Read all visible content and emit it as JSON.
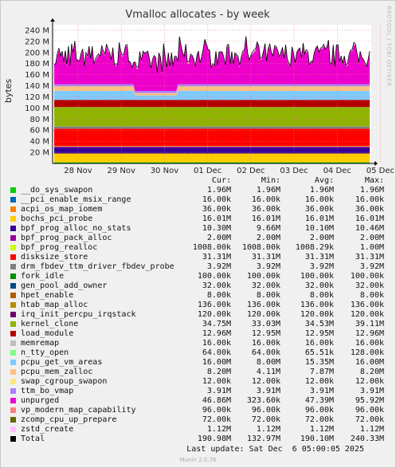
{
  "chart_data": {
    "type": "area",
    "title": "Vmalloc allocates - by week",
    "ylabel": "bytes",
    "side_label": "RRDTOOL / TOBI OETIKER",
    "ylim": [
      0,
      250000000
    ],
    "y_ticks": [
      20000000,
      40000000,
      60000000,
      80000000,
      100000000,
      120000000,
      140000000,
      160000000,
      180000000,
      200000000,
      220000000,
      240000000
    ],
    "y_tick_labels": [
      "20 M",
      "40 M",
      "60 M",
      "80 M",
      "100 M",
      "120 M",
      "140 M",
      "160 M",
      "180 M",
      "200 M",
      "220 M",
      "240 M"
    ],
    "x_tick_labels": [
      "28 Nov",
      "29 Nov",
      "30 Nov",
      "01 Dec",
      "02 Dec",
      "03 Dec",
      "04 Dec",
      "05 Dec"
    ],
    "grid": true,
    "stacked": true
  },
  "legend": {
    "headers": {
      "cur": "Cur:",
      "min": "Min:",
      "avg": "Avg:",
      "max": "Max:"
    },
    "rows": [
      {
        "name": "__do_sys_swapon",
        "color": "#00cc00",
        "cur": "1.96M",
        "min": "1.96M",
        "avg": "1.96M",
        "max": "1.96M"
      },
      {
        "name": "__pci_enable_msix_range",
        "color": "#0066b3",
        "cur": "16.00k",
        "min": "16.00k",
        "avg": "16.00k",
        "max": "16.00k"
      },
      {
        "name": "acpi_os_map_iomem",
        "color": "#ff8000",
        "cur": "36.00k",
        "min": "36.00k",
        "avg": "36.00k",
        "max": "36.00k"
      },
      {
        "name": "bochs_pci_probe",
        "color": "#ffcc00",
        "cur": "16.01M",
        "min": "16.01M",
        "avg": "16.01M",
        "max": "16.01M"
      },
      {
        "name": "bpf_prog_alloc_no_stats",
        "color": "#330099",
        "cur": "10.30M",
        "min": "9.66M",
        "avg": "10.10M",
        "max": "10.46M"
      },
      {
        "name": "bpf_prog_pack_alloc",
        "color": "#990099",
        "cur": "2.00M",
        "min": "2.00M",
        "avg": "2.00M",
        "max": "2.00M"
      },
      {
        "name": "bpf_prog_realloc",
        "color": "#ccff00",
        "cur": "1008.00k",
        "min": "1008.00k",
        "avg": "1008.29k",
        "max": "1.00M"
      },
      {
        "name": "disksize_store",
        "color": "#ff0000",
        "cur": "31.31M",
        "min": "31.31M",
        "avg": "31.31M",
        "max": "31.31M"
      },
      {
        "name": "drm_fbdev_ttm_driver_fbdev_probe",
        "color": "#808080",
        "cur": "3.92M",
        "min": "3.92M",
        "avg": "3.92M",
        "max": "3.92M"
      },
      {
        "name": "fork_idle",
        "color": "#008f00",
        "cur": "100.00k",
        "min": "100.00k",
        "avg": "100.00k",
        "max": "100.00k"
      },
      {
        "name": "gen_pool_add_owner",
        "color": "#00487d",
        "cur": "32.00k",
        "min": "32.00k",
        "avg": "32.00k",
        "max": "32.00k"
      },
      {
        "name": "hpet_enable",
        "color": "#b35a00",
        "cur": "8.00k",
        "min": "8.00k",
        "avg": "8.00k",
        "max": "8.00k"
      },
      {
        "name": "htab_map_alloc",
        "color": "#b38f00",
        "cur": "136.00k",
        "min": "136.00k",
        "avg": "136.00k",
        "max": "136.00k"
      },
      {
        "name": "irq_init_percpu_irqstack",
        "color": "#6b006b",
        "cur": "120.00k",
        "min": "120.00k",
        "avg": "120.00k",
        "max": "120.00k"
      },
      {
        "name": "kernel_clone",
        "color": "#8fb300",
        "cur": "34.75M",
        "min": "33.03M",
        "avg": "34.53M",
        "max": "39.11M"
      },
      {
        "name": "load_module",
        "color": "#b30000",
        "cur": "12.96M",
        "min": "12.95M",
        "avg": "12.95M",
        "max": "12.96M"
      },
      {
        "name": "memremap",
        "color": "#bebebe",
        "cur": "16.00k",
        "min": "16.00k",
        "avg": "16.00k",
        "max": "16.00k"
      },
      {
        "name": "n_tty_open",
        "color": "#80ff80",
        "cur": "64.00k",
        "min": "64.00k",
        "avg": "65.51k",
        "max": "128.00k"
      },
      {
        "name": "pcpu_get_vm_areas",
        "color": "#80c9ff",
        "cur": "16.00M",
        "min": "8.00M",
        "avg": "15.35M",
        "max": "16.00M"
      },
      {
        "name": "pcpu_mem_zalloc",
        "color": "#ffc080",
        "cur": "8.20M",
        "min": "4.11M",
        "avg": "7.87M",
        "max": "8.20M"
      },
      {
        "name": "swap_cgroup_swapon",
        "color": "#ffe680",
        "cur": "12.00k",
        "min": "12.00k",
        "avg": "12.00k",
        "max": "12.00k"
      },
      {
        "name": "ttm_bo_vmap",
        "color": "#aa80ff",
        "cur": "3.91M",
        "min": "3.91M",
        "avg": "3.91M",
        "max": "3.91M"
      },
      {
        "name": "unpurged",
        "color": "#ee00cc",
        "cur": "46.86M",
        "min": "323.60k",
        "avg": "47.39M",
        "max": "95.92M"
      },
      {
        "name": "vp_modern_map_capability",
        "color": "#ff8080",
        "cur": "96.00k",
        "min": "96.00k",
        "avg": "96.00k",
        "max": "96.00k"
      },
      {
        "name": "zcomp_cpu_up_prepare",
        "color": "#666600",
        "cur": "72.00k",
        "min": "72.00k",
        "avg": "72.00k",
        "max": "72.00k"
      },
      {
        "name": "zstd_create",
        "color": "#ffbfff",
        "cur": "1.12M",
        "min": "1.12M",
        "avg": "1.12M",
        "max": "1.12M"
      },
      {
        "name": "Total",
        "color": "#000000",
        "cur": "190.98M",
        "min": "132.97M",
        "avg": "190.10M",
        "max": "240.33M"
      }
    ]
  },
  "footer": {
    "last_update": "Last update: Sat Dec  6 05:00:05 2025",
    "version": "Munin 2.0.76"
  }
}
